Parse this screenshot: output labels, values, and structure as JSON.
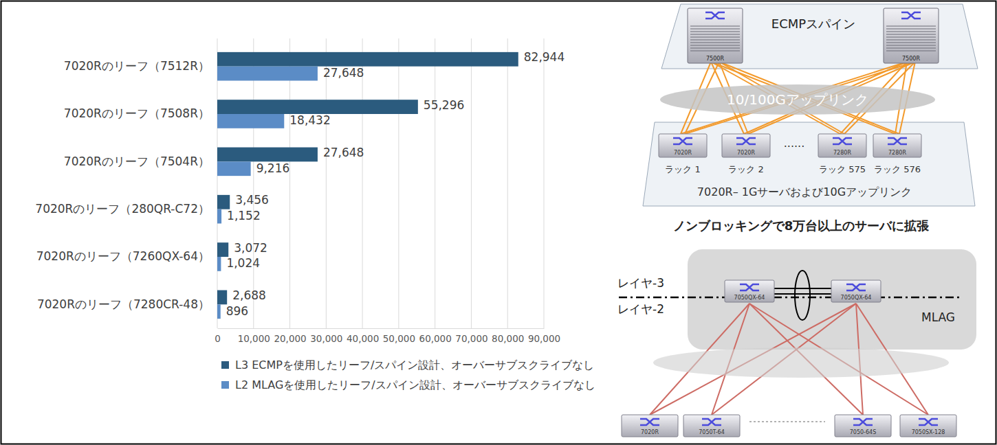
{
  "chart_data": {
    "type": "bar",
    "orientation": "horizontal",
    "categories": [
      "7020Rのリーフ（7512R）",
      "7020Rのリーフ（7508R）",
      "7020Rのリーフ（7504R）",
      "7020Rのリーフ（280QR-C72）",
      "7020Rのリーフ（7260QX-64）",
      "7020Rのリーフ（7280CR-48）"
    ],
    "series": [
      {
        "name": "L3 ECMPを使用したリーフ/スパイン設計、オーバーサブスクライブなし",
        "color": "#2b5b7e",
        "values": [
          82944,
          55296,
          27648,
          3456,
          3072,
          2688
        ],
        "value_labels": [
          "82,944",
          "55,296",
          "27,648",
          "3,456",
          "3,072",
          "2,688"
        ]
      },
      {
        "name": "L2 MLAGを使用したリーフ/スパイン設計、オーバーサブスクライブなし",
        "color": "#5b8cc6",
        "values": [
          27648,
          18432,
          9216,
          1152,
          1024,
          896
        ],
        "value_labels": [
          "27,648",
          "18,432",
          "9,216",
          "1,152",
          "1,024",
          "896"
        ]
      }
    ],
    "xlim": [
      0,
      90000
    ],
    "xticks": [
      0,
      {
        "value": 10000,
        "label": "10,000"
      },
      {
        "value": 20000,
        "label": "20,000"
      },
      {
        "value": 30000,
        "label": "30,000"
      },
      {
        "value": 40000,
        "label": "40,000"
      },
      {
        "value": 50000,
        "label": "50,000"
      },
      {
        "value": 60000,
        "label": "60,000"
      },
      {
        "value": 70000,
        "label": "70,000"
      },
      {
        "value": 80000,
        "label": "80,000"
      },
      {
        "value": 90000,
        "label": "90,000"
      }
    ],
    "grid": true,
    "legend": "bottom",
    "data_labels": true
  },
  "diagram": {
    "spine": {
      "title": "ECMPスパイン",
      "switches": [
        "7500R",
        "7500R"
      ]
    },
    "uplink": "10/100Gアップリンク",
    "leaf": {
      "switches": [
        {
          "model": "7020R",
          "rack": "ラック 1"
        },
        {
          "model": "7020R",
          "rack": "ラック 2"
        },
        {
          "model": "7280R",
          "rack": "ラック 575"
        },
        {
          "model": "7280R",
          "rack": "ラック 576"
        }
      ],
      "ellipsis": "......",
      "caption": "7020R– 1Gサーバおよび10Gアップリンク"
    },
    "headline": "ノンブロッキングで8万台以上のサーバに拡張",
    "mlag": {
      "layer3": "レイヤ-3",
      "layer2": "レイヤ-2",
      "label": "MLAG",
      "core_switches": [
        "7050QX-64",
        "7050QX-64"
      ],
      "leaf_switches": [
        "7020R",
        "7050T-64",
        "7050-64S",
        "7050SX-128"
      ]
    }
  }
}
